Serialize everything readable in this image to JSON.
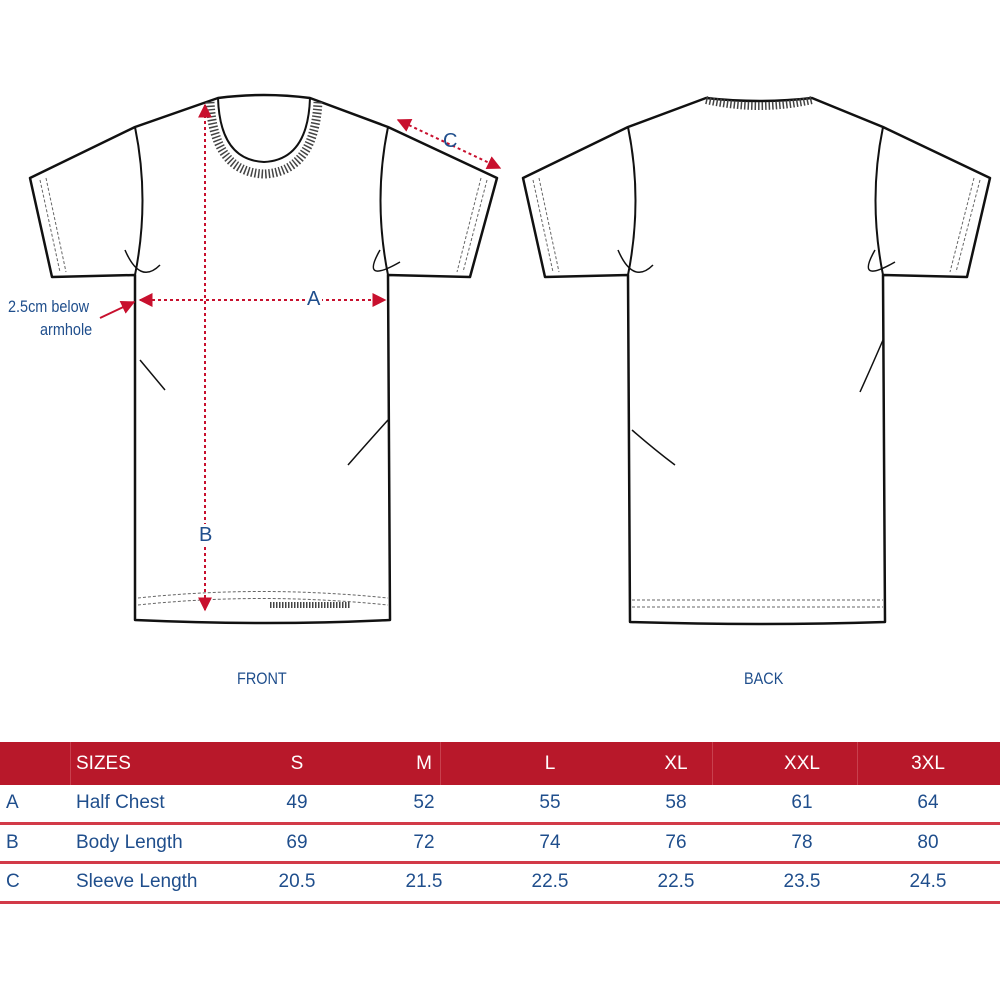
{
  "diagram": {
    "front_label": "FRONT",
    "back_label": "BACK",
    "measure_a": "A",
    "measure_b": "B",
    "measure_c": "C",
    "armhole_note": [
      "2.5cm below",
      "armhole"
    ],
    "colors": {
      "outline": "#111111",
      "measure": "#c8102e",
      "text": "#1f4e8c",
      "header": "#b8182a"
    }
  },
  "table": {
    "header": {
      "label": "SIZES",
      "sizes": [
        "S",
        "M",
        "L",
        "XL",
        "XXL",
        "3XL"
      ]
    },
    "rows": [
      {
        "key": "A",
        "name": "Half Chest",
        "values": [
          "49",
          "52",
          "55",
          "58",
          "61",
          "64"
        ]
      },
      {
        "key": "B",
        "name": "Body Length",
        "values": [
          "69",
          "72",
          "74",
          "76",
          "78",
          "80"
        ]
      },
      {
        "key": "C",
        "name": "Sleeve Length",
        "values": [
          "20.5",
          "21.5",
          "22.5",
          "22.5",
          "23.5",
          "24.5"
        ]
      }
    ]
  }
}
